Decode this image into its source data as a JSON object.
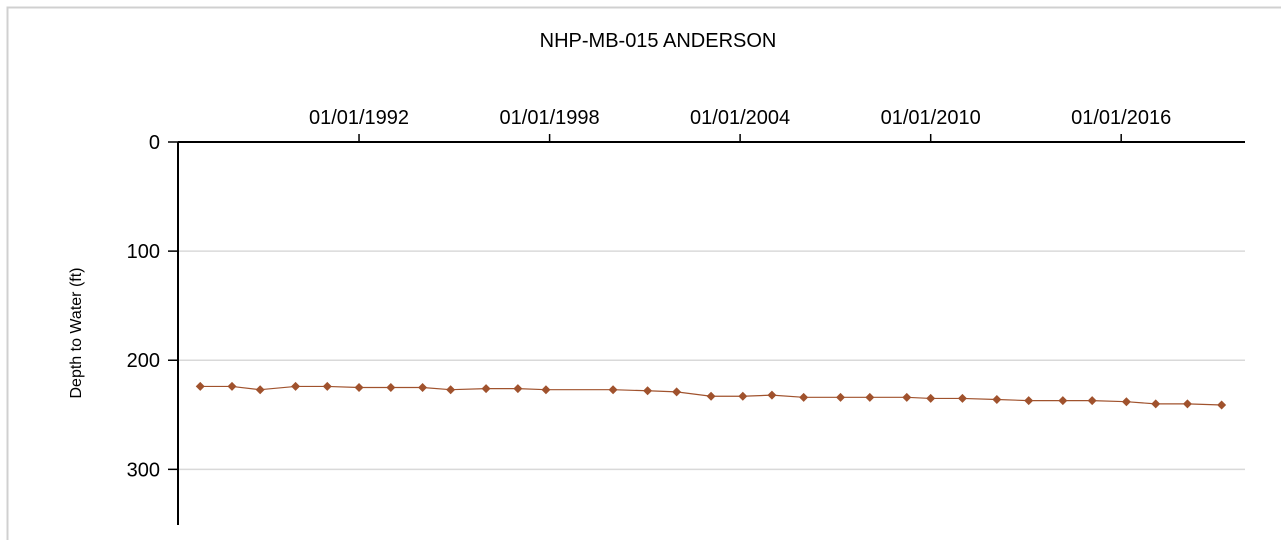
{
  "chart_data": {
    "type": "line",
    "title": "NHP-MB-015 ANDERSON",
    "y_label": "Depth to Water (ft)",
    "y_inverted": true,
    "x_axis_position": "top",
    "grid": true,
    "xlim": [
      "04/20/1986",
      "11/25/2019"
    ],
    "xticks": [
      "01/01/1992",
      "01/01/1998",
      "01/01/2004",
      "01/01/2010",
      "01/01/2016"
    ],
    "ylim": [
      0,
      351
    ],
    "yticks": [
      0,
      100,
      200,
      300
    ],
    "series": [
      {
        "name": "Depth to Water",
        "color": "#a0522d",
        "x": [
          "01/01/1987",
          "01/01/1988",
          "11/20/1988",
          "01/01/1990",
          "01/01/1991",
          "01/01/1992",
          "01/01/1993",
          "01/01/1994",
          "11/20/1994",
          "01/01/1996",
          "01/01/1997",
          "11/20/1997",
          "01/01/2000",
          "02/01/2001",
          "01/01/2002",
          "02/01/2003",
          "02/01/2004",
          "01/01/2005",
          "01/01/2006",
          "03/01/2007",
          "02/01/2008",
          "04/01/2009",
          "01/01/2010",
          "01/01/2011",
          "02/01/2012",
          "02/01/2013",
          "03/01/2014",
          "02/01/2015",
          "03/01/2016",
          "02/01/2017",
          "02/01/2018",
          "03/01/2019"
        ],
        "values": [
          224,
          224,
          227,
          224,
          224,
          225,
          225,
          225,
          227,
          226,
          226,
          227,
          227,
          228,
          229,
          233,
          233,
          232,
          234,
          234,
          234,
          234,
          235,
          235,
          236,
          237,
          237,
          237,
          238,
          240,
          240,
          241
        ]
      }
    ]
  }
}
